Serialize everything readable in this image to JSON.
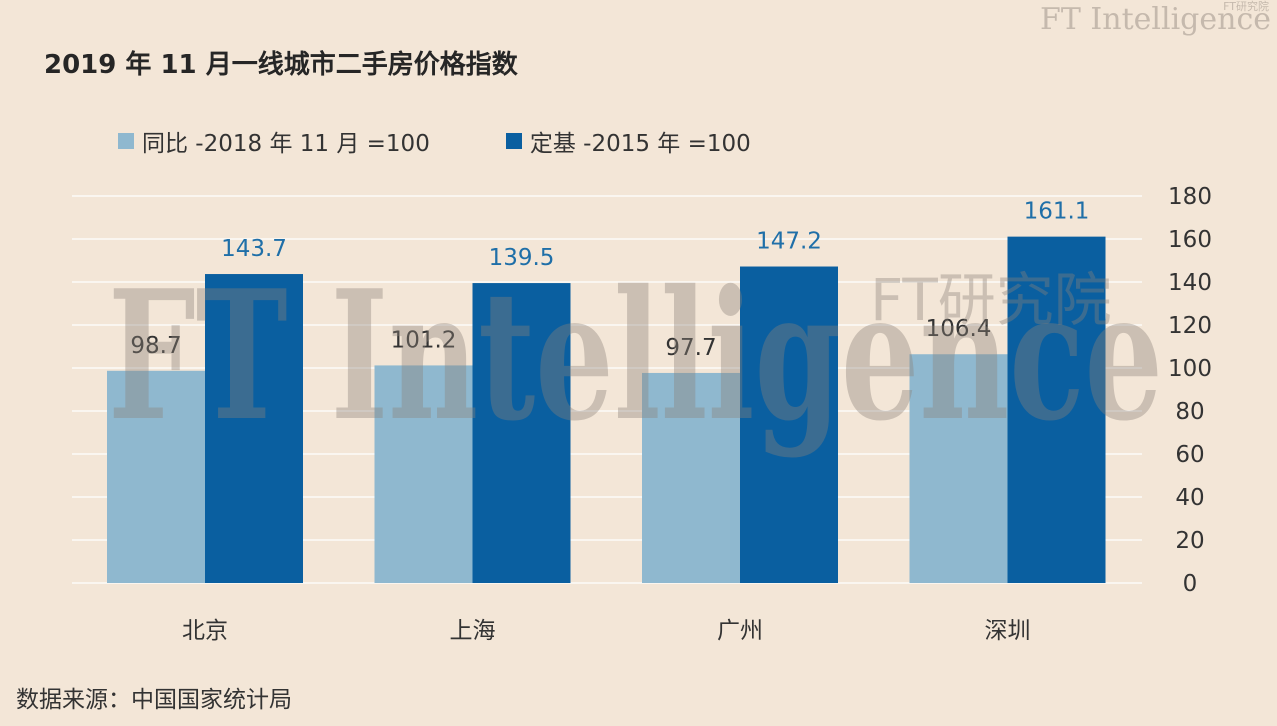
{
  "brand": {
    "logo_text": "FT Intelligence",
    "logo_cn": "FT研究院",
    "watermark_latin": "FT Intelligence",
    "watermark_cn": "FT研究院"
  },
  "title": "2019 年 11 月一线城市二手房价格指数",
  "source": "数据来源：中国国家统计局",
  "colors": {
    "background": "#f3e6d7",
    "series_yoy": "#8fb8cf",
    "series_base": "#0a5fa0",
    "label_base": "#1f6fa8",
    "label_yoy": "#333333",
    "grid": "#ffffff"
  },
  "chart_data": {
    "type": "bar",
    "categories": [
      "北京",
      "上海",
      "广州",
      "深圳"
    ],
    "series": [
      {
        "name": "同比 -2018 年 11 月 =100",
        "values": [
          98.7,
          101.2,
          97.7,
          106.4
        ]
      },
      {
        "name": "定基 -2015 年 =100",
        "values": [
          143.7,
          139.5,
          147.2,
          161.1
        ]
      }
    ],
    "ylim": [
      0,
      180
    ],
    "yticks": [
      0,
      20,
      40,
      60,
      80,
      100,
      120,
      140,
      160,
      180
    ],
    "y_axis_side": "right",
    "grid": true,
    "legend_position": "top-left",
    "data_labels": true
  }
}
